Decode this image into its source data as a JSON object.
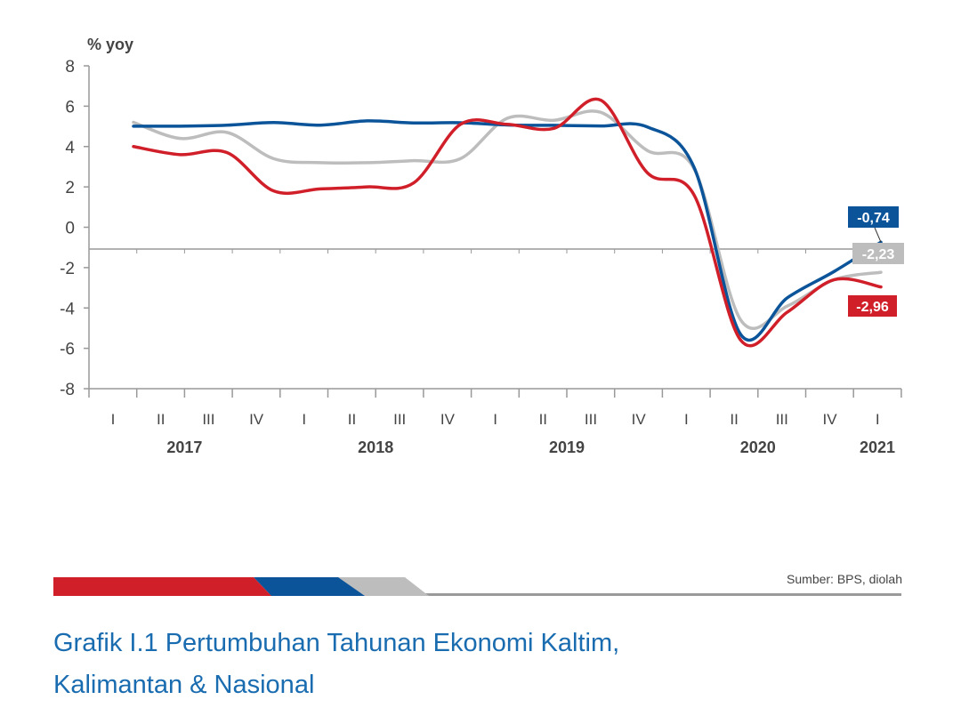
{
  "chart_data": {
    "type": "line",
    "ylabel": "% yoy",
    "ylim": [
      -8,
      8
    ],
    "yticks": [
      8,
      6,
      4,
      2,
      0,
      -2,
      -4,
      -6,
      -8
    ],
    "quarter_labels": [
      "I",
      "II",
      "III",
      "IV",
      "I",
      "II",
      "III",
      "IV",
      "I",
      "II",
      "III",
      "IV",
      "I",
      "II",
      "III",
      "IV",
      "I"
    ],
    "years": [
      "2017",
      "2018",
      "2019",
      "2020",
      "2021"
    ],
    "grid": false,
    "series": [
      {
        "color": "#0b5499",
        "end_label": "-0,74",
        "values": [
          5.01,
          5.01,
          5.06,
          5.19,
          5.06,
          5.27,
          5.17,
          5.18,
          5.07,
          5.05,
          5.02,
          4.97,
          2.97,
          -5.32,
          -3.49,
          -2.19,
          -0.74
        ]
      },
      {
        "color": "#bdbdbd",
        "end_label": "-2,23",
        "values": [
          5.2,
          4.4,
          4.7,
          3.4,
          3.2,
          3.2,
          3.3,
          3.4,
          5.4,
          5.3,
          5.7,
          3.8,
          2.9,
          -4.6,
          -3.9,
          -2.6,
          -2.23
        ]
      },
      {
        "color": "#d11f2a",
        "end_label": "-2,96",
        "values": [
          4.0,
          3.6,
          3.7,
          1.8,
          1.9,
          2.0,
          2.2,
          5.1,
          5.1,
          4.9,
          6.3,
          2.7,
          1.6,
          -5.6,
          -4.2,
          -2.6,
          -2.96
        ]
      }
    ]
  },
  "footer": {
    "source": "Sumber: BPS, diolah",
    "caption_line1": "Grafik I.1 Pertumbuhan Tahunan Ekonomi Kaltim,",
    "caption_line2": "Kalimantan & Nasional",
    "stripe_colors": [
      "#d11f2a",
      "#0b5499",
      "#bdbdbd"
    ]
  }
}
